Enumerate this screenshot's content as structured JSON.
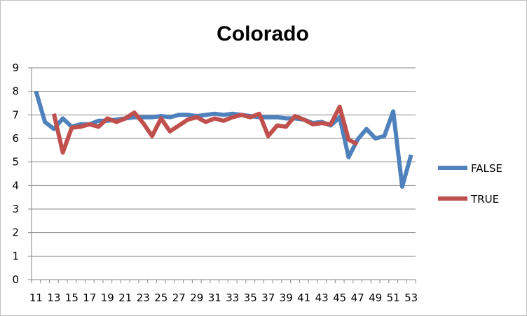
{
  "chart_data": {
    "type": "line",
    "title": "Colorado",
    "xlabel": "",
    "ylabel": "",
    "ylim": [
      0,
      9
    ],
    "yticks": [
      "0",
      "1",
      "2",
      "3",
      "4",
      "5",
      "6",
      "7",
      "8",
      "9"
    ],
    "x_start": 11,
    "x_end": 53,
    "xticks": [
      "11",
      "13",
      "15",
      "17",
      "19",
      "21",
      "23",
      "25",
      "27",
      "29",
      "31",
      "33",
      "35",
      "37",
      "39",
      "41",
      "43",
      "45",
      "47",
      "49",
      "51",
      "53"
    ],
    "grid": "horizontal",
    "legend_position": "right",
    "series": [
      {
        "name": "FALSE",
        "color": "#4f81bd",
        "x": [
          11,
          12,
          13,
          14,
          15,
          16,
          17,
          18,
          19,
          20,
          21,
          22,
          23,
          24,
          25,
          26,
          27,
          28,
          29,
          30,
          31,
          32,
          33,
          34,
          35,
          36,
          37,
          38,
          39,
          40,
          41,
          42,
          43,
          44,
          45,
          46,
          47,
          48,
          49,
          50,
          51,
          52,
          53
        ],
        "values": [
          8.0,
          6.7,
          6.4,
          6.85,
          6.5,
          6.6,
          6.6,
          6.75,
          6.75,
          6.8,
          6.85,
          6.9,
          6.9,
          6.9,
          6.95,
          6.9,
          7.0,
          7.0,
          6.95,
          7.0,
          7.05,
          7.0,
          7.05,
          7.0,
          6.95,
          6.9,
          6.9,
          6.9,
          6.85,
          6.85,
          6.8,
          6.65,
          6.7,
          6.55,
          6.9,
          5.2,
          5.95,
          6.4,
          6.0,
          6.1,
          7.15,
          3.95,
          5.3
        ]
      },
      {
        "name": "TRUE",
        "color": "#c0504d",
        "x": [
          13,
          14,
          15,
          16,
          17,
          18,
          19,
          20,
          21,
          22,
          23,
          24,
          25,
          26,
          27,
          28,
          29,
          30,
          31,
          32,
          33,
          34,
          35,
          36,
          37,
          38,
          39,
          40,
          41,
          42,
          43,
          44,
          45,
          46,
          47
        ],
        "values": [
          7.05,
          5.4,
          6.45,
          6.5,
          6.6,
          6.5,
          6.85,
          6.7,
          6.85,
          7.1,
          6.65,
          6.1,
          6.85,
          6.3,
          6.55,
          6.8,
          6.9,
          6.7,
          6.85,
          6.75,
          6.9,
          7.0,
          6.9,
          7.05,
          6.1,
          6.55,
          6.5,
          6.95,
          6.8,
          6.6,
          6.65,
          6.6,
          7.35,
          5.95,
          5.75
        ]
      }
    ]
  }
}
